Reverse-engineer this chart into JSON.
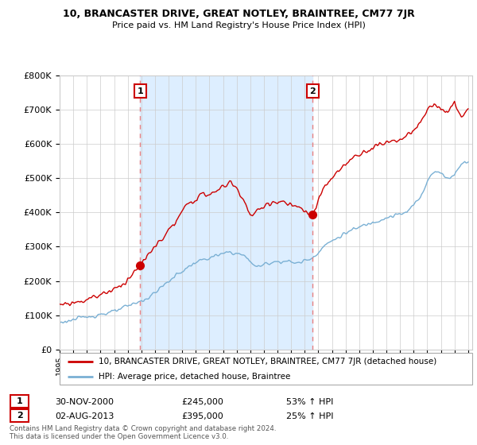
{
  "title": "10, BRANCASTER DRIVE, GREAT NOTLEY, BRAINTREE, CM77 7JR",
  "subtitle": "Price paid vs. HM Land Registry's House Price Index (HPI)",
  "legend_property": "10, BRANCASTER DRIVE, GREAT NOTLEY, BRAINTREE, CM77 7JR (detached house)",
  "legend_hpi": "HPI: Average price, detached house, Braintree",
  "transaction1_label": "30-NOV-2000",
  "transaction1_price": "£245,000",
  "transaction1_hpi": "53% ↑ HPI",
  "transaction2_label": "02-AUG-2013",
  "transaction2_price": "£395,000",
  "transaction2_hpi": "25% ↑ HPI",
  "footnote": "Contains HM Land Registry data © Crown copyright and database right 2024.\nThis data is licensed under the Open Government Licence v3.0.",
  "property_color": "#cc0000",
  "hpi_color": "#7ab0d4",
  "vline_color": "#e88080",
  "shade_color": "#ddeeff",
  "ylim": [
    0,
    800000
  ],
  "xlim_start": 1995.0,
  "xlim_end": 2025.3,
  "t1": 2000.9167,
  "t2": 2013.5833,
  "sale1_price": 245000,
  "sale2_price": 395000
}
